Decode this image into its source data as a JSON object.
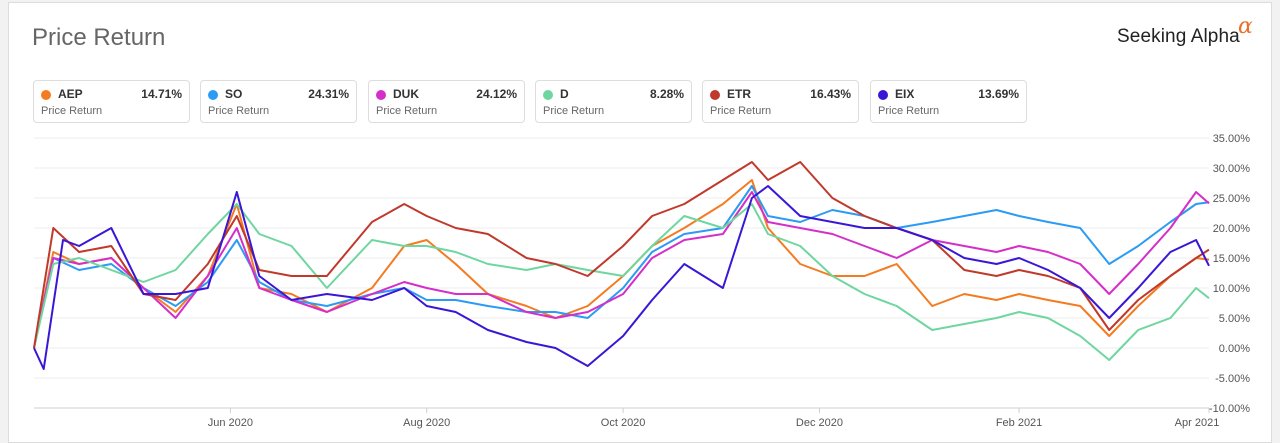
{
  "header": {
    "title": "Price Return",
    "brand": "Seeking Alpha",
    "brand_alpha": "α"
  },
  "legend": [
    {
      "ticker": "AEP",
      "value": "14.71%",
      "sub": "Price Return",
      "color": "#f47b20"
    },
    {
      "ticker": "SO",
      "value": "24.31%",
      "sub": "Price Return",
      "color": "#2b9bf4"
    },
    {
      "ticker": "DUK",
      "value": "24.12%",
      "sub": "Price Return",
      "color": "#d42fc9"
    },
    {
      "ticker": "D",
      "value": "8.28%",
      "sub": "Price Return",
      "color": "#6fd6a0"
    },
    {
      "ticker": "ETR",
      "value": "16.43%",
      "sub": "Price Return",
      "color": "#c0392b"
    },
    {
      "ticker": "EIX",
      "value": "13.69%",
      "sub": "Price Return",
      "color": "#3a16d6"
    }
  ],
  "chart_data": {
    "type": "line",
    "x_type": "date",
    "x_range": [
      "2020-04-01",
      "2021-04-01"
    ],
    "ylim": [
      -10,
      35
    ],
    "y_ticks": [
      "35.00%",
      "30.00%",
      "25.00%",
      "20.00%",
      "15.00%",
      "10.00%",
      "5.00%",
      "0.00%",
      "-5.00%",
      "-10.00%"
    ],
    "y_tick_values": [
      35,
      30,
      25,
      20,
      15,
      10,
      5,
      0,
      -5,
      -10
    ],
    "x_ticks": [
      {
        "label": "Jun 2020",
        "date": "2020-06-01"
      },
      {
        "label": "Aug 2020",
        "date": "2020-08-01"
      },
      {
        "label": "Oct 2020",
        "date": "2020-10-01"
      },
      {
        "label": "Dec 2020",
        "date": "2020-12-01"
      },
      {
        "label": "Feb 2021",
        "date": "2021-02-01"
      },
      {
        "label": "Apr 2021",
        "date": "2021-04-01"
      }
    ],
    "grid": "horizontal",
    "series": [
      {
        "name": "AEP",
        "color": "#f47b20",
        "points": [
          [
            "2020-04-01",
            0
          ],
          [
            "2020-04-07",
            16
          ],
          [
            "2020-04-15",
            14
          ],
          [
            "2020-04-25",
            15
          ],
          [
            "2020-05-05",
            10
          ],
          [
            "2020-05-15",
            6
          ],
          [
            "2020-05-25",
            12
          ],
          [
            "2020-06-03",
            24
          ],
          [
            "2020-06-10",
            10
          ],
          [
            "2020-06-20",
            9
          ],
          [
            "2020-07-01",
            6
          ],
          [
            "2020-07-15",
            10
          ],
          [
            "2020-07-25",
            17
          ],
          [
            "2020-08-01",
            18
          ],
          [
            "2020-08-10",
            14
          ],
          [
            "2020-08-20",
            9
          ],
          [
            "2020-09-01",
            7
          ],
          [
            "2020-09-10",
            5
          ],
          [
            "2020-09-20",
            7
          ],
          [
            "2020-10-01",
            12
          ],
          [
            "2020-10-10",
            17
          ],
          [
            "2020-10-20",
            20
          ],
          [
            "2020-11-01",
            24
          ],
          [
            "2020-11-10",
            28
          ],
          [
            "2020-11-15",
            20
          ],
          [
            "2020-11-25",
            14
          ],
          [
            "2020-12-05",
            12
          ],
          [
            "2020-12-15",
            12
          ],
          [
            "2020-12-25",
            14
          ],
          [
            "2021-01-05",
            7
          ],
          [
            "2021-01-15",
            9
          ],
          [
            "2021-01-25",
            8
          ],
          [
            "2021-02-01",
            9
          ],
          [
            "2021-02-10",
            8
          ],
          [
            "2021-02-20",
            7
          ],
          [
            "2021-03-01",
            2
          ],
          [
            "2021-03-10",
            7
          ],
          [
            "2021-03-20",
            12
          ],
          [
            "2021-03-28",
            15
          ],
          [
            "2021-04-01",
            14.7
          ]
        ]
      },
      {
        "name": "SO",
        "color": "#2b9bf4",
        "points": [
          [
            "2020-04-01",
            0
          ],
          [
            "2020-04-07",
            15
          ],
          [
            "2020-04-15",
            13
          ],
          [
            "2020-04-25",
            14
          ],
          [
            "2020-05-05",
            10
          ],
          [
            "2020-05-15",
            7
          ],
          [
            "2020-05-25",
            11
          ],
          [
            "2020-06-03",
            18
          ],
          [
            "2020-06-10",
            11
          ],
          [
            "2020-06-20",
            8
          ],
          [
            "2020-07-01",
            7
          ],
          [
            "2020-07-15",
            9
          ],
          [
            "2020-07-25",
            10
          ],
          [
            "2020-08-01",
            8
          ],
          [
            "2020-08-10",
            8
          ],
          [
            "2020-08-20",
            7
          ],
          [
            "2020-09-01",
            6
          ],
          [
            "2020-09-10",
            6
          ],
          [
            "2020-09-20",
            5
          ],
          [
            "2020-10-01",
            10
          ],
          [
            "2020-10-10",
            16
          ],
          [
            "2020-10-20",
            19
          ],
          [
            "2020-11-01",
            20
          ],
          [
            "2020-11-10",
            27
          ],
          [
            "2020-11-15",
            22
          ],
          [
            "2020-11-25",
            21
          ],
          [
            "2020-12-05",
            23
          ],
          [
            "2020-12-15",
            22
          ],
          [
            "2020-12-25",
            20
          ],
          [
            "2021-01-05",
            21
          ],
          [
            "2021-01-15",
            22
          ],
          [
            "2021-01-25",
            23
          ],
          [
            "2021-02-01",
            22
          ],
          [
            "2021-02-10",
            21
          ],
          [
            "2021-02-20",
            20
          ],
          [
            "2021-03-01",
            14
          ],
          [
            "2021-03-10",
            17
          ],
          [
            "2021-03-20",
            21
          ],
          [
            "2021-03-28",
            24
          ],
          [
            "2021-04-01",
            24.3
          ]
        ]
      },
      {
        "name": "DUK",
        "color": "#d42fc9",
        "points": [
          [
            "2020-04-01",
            0
          ],
          [
            "2020-04-07",
            15
          ],
          [
            "2020-04-15",
            14
          ],
          [
            "2020-04-25",
            15
          ],
          [
            "2020-05-05",
            10
          ],
          [
            "2020-05-15",
            5
          ],
          [
            "2020-05-25",
            12
          ],
          [
            "2020-06-03",
            20
          ],
          [
            "2020-06-10",
            10
          ],
          [
            "2020-06-20",
            8
          ],
          [
            "2020-07-01",
            6
          ],
          [
            "2020-07-15",
            9
          ],
          [
            "2020-07-25",
            11
          ],
          [
            "2020-08-01",
            10
          ],
          [
            "2020-08-10",
            9
          ],
          [
            "2020-08-20",
            9
          ],
          [
            "2020-09-01",
            6
          ],
          [
            "2020-09-10",
            5
          ],
          [
            "2020-09-20",
            6
          ],
          [
            "2020-10-01",
            9
          ],
          [
            "2020-10-10",
            15
          ],
          [
            "2020-10-20",
            18
          ],
          [
            "2020-11-01",
            19
          ],
          [
            "2020-11-10",
            26
          ],
          [
            "2020-11-15",
            21
          ],
          [
            "2020-11-25",
            20
          ],
          [
            "2020-12-05",
            19
          ],
          [
            "2020-12-15",
            17
          ],
          [
            "2020-12-25",
            15
          ],
          [
            "2021-01-05",
            18
          ],
          [
            "2021-01-15",
            17
          ],
          [
            "2021-01-25",
            16
          ],
          [
            "2021-02-01",
            17
          ],
          [
            "2021-02-10",
            16
          ],
          [
            "2021-02-20",
            14
          ],
          [
            "2021-03-01",
            9
          ],
          [
            "2021-03-10",
            14
          ],
          [
            "2021-03-20",
            20
          ],
          [
            "2021-03-28",
            26
          ],
          [
            "2021-04-01",
            24.1
          ]
        ]
      },
      {
        "name": "D",
        "color": "#6fd6a0",
        "points": [
          [
            "2020-04-01",
            0
          ],
          [
            "2020-04-07",
            14
          ],
          [
            "2020-04-15",
            15
          ],
          [
            "2020-04-25",
            13
          ],
          [
            "2020-05-05",
            11
          ],
          [
            "2020-05-15",
            13
          ],
          [
            "2020-05-25",
            19
          ],
          [
            "2020-06-03",
            24
          ],
          [
            "2020-06-10",
            19
          ],
          [
            "2020-06-20",
            17
          ],
          [
            "2020-07-01",
            10
          ],
          [
            "2020-07-15",
            18
          ],
          [
            "2020-07-25",
            17
          ],
          [
            "2020-08-01",
            17
          ],
          [
            "2020-08-10",
            16
          ],
          [
            "2020-08-20",
            14
          ],
          [
            "2020-09-01",
            13
          ],
          [
            "2020-09-10",
            14
          ],
          [
            "2020-09-20",
            13
          ],
          [
            "2020-10-01",
            12
          ],
          [
            "2020-10-10",
            17
          ],
          [
            "2020-10-20",
            22
          ],
          [
            "2020-11-01",
            20
          ],
          [
            "2020-11-10",
            24
          ],
          [
            "2020-11-15",
            19
          ],
          [
            "2020-11-25",
            17
          ],
          [
            "2020-12-05",
            12
          ],
          [
            "2020-12-15",
            9
          ],
          [
            "2020-12-25",
            7
          ],
          [
            "2021-01-05",
            3
          ],
          [
            "2021-01-15",
            4
          ],
          [
            "2021-01-25",
            5
          ],
          [
            "2021-02-01",
            6
          ],
          [
            "2021-02-10",
            5
          ],
          [
            "2021-02-20",
            2
          ],
          [
            "2021-03-01",
            -2
          ],
          [
            "2021-03-10",
            3
          ],
          [
            "2021-03-20",
            5
          ],
          [
            "2021-03-28",
            10
          ],
          [
            "2021-04-01",
            8.3
          ]
        ]
      },
      {
        "name": "ETR",
        "color": "#c0392b",
        "points": [
          [
            "2020-04-01",
            0
          ],
          [
            "2020-04-07",
            20
          ],
          [
            "2020-04-15",
            16
          ],
          [
            "2020-04-25",
            17
          ],
          [
            "2020-05-05",
            9
          ],
          [
            "2020-05-15",
            8
          ],
          [
            "2020-05-25",
            14
          ],
          [
            "2020-06-03",
            22
          ],
          [
            "2020-06-10",
            13
          ],
          [
            "2020-06-20",
            12
          ],
          [
            "2020-07-01",
            12
          ],
          [
            "2020-07-15",
            21
          ],
          [
            "2020-07-25",
            24
          ],
          [
            "2020-08-01",
            22
          ],
          [
            "2020-08-10",
            20
          ],
          [
            "2020-08-20",
            19
          ],
          [
            "2020-09-01",
            15
          ],
          [
            "2020-09-10",
            14
          ],
          [
            "2020-09-20",
            12
          ],
          [
            "2020-10-01",
            17
          ],
          [
            "2020-10-10",
            22
          ],
          [
            "2020-10-20",
            24
          ],
          [
            "2020-11-01",
            28
          ],
          [
            "2020-11-10",
            31
          ],
          [
            "2020-11-15",
            28
          ],
          [
            "2020-11-25",
            31
          ],
          [
            "2020-12-05",
            25
          ],
          [
            "2020-12-15",
            22
          ],
          [
            "2020-12-25",
            20
          ],
          [
            "2021-01-05",
            18
          ],
          [
            "2021-01-15",
            13
          ],
          [
            "2021-01-25",
            12
          ],
          [
            "2021-02-01",
            13
          ],
          [
            "2021-02-10",
            12
          ],
          [
            "2021-02-20",
            10
          ],
          [
            "2021-03-01",
            3
          ],
          [
            "2021-03-10",
            8
          ],
          [
            "2021-03-20",
            12
          ],
          [
            "2021-03-28",
            15
          ],
          [
            "2021-04-01",
            16.4
          ]
        ]
      },
      {
        "name": "EIX",
        "color": "#3a16d6",
        "points": [
          [
            "2020-04-01",
            0
          ],
          [
            "2020-04-04",
            -3.5
          ],
          [
            "2020-04-10",
            18
          ],
          [
            "2020-04-15",
            17
          ],
          [
            "2020-04-25",
            20
          ],
          [
            "2020-05-05",
            9
          ],
          [
            "2020-05-15",
            9
          ],
          [
            "2020-05-25",
            10
          ],
          [
            "2020-06-03",
            26
          ],
          [
            "2020-06-10",
            12
          ],
          [
            "2020-06-20",
            8
          ],
          [
            "2020-07-01",
            9
          ],
          [
            "2020-07-15",
            8
          ],
          [
            "2020-07-25",
            10
          ],
          [
            "2020-08-01",
            7
          ],
          [
            "2020-08-10",
            6
          ],
          [
            "2020-08-20",
            3
          ],
          [
            "2020-09-01",
            1
          ],
          [
            "2020-09-10",
            0
          ],
          [
            "2020-09-20",
            -3
          ],
          [
            "2020-10-01",
            2
          ],
          [
            "2020-10-10",
            8
          ],
          [
            "2020-10-20",
            14
          ],
          [
            "2020-11-01",
            10
          ],
          [
            "2020-11-10",
            25
          ],
          [
            "2020-11-15",
            27
          ],
          [
            "2020-11-25",
            22
          ],
          [
            "2020-12-05",
            21
          ],
          [
            "2020-12-15",
            20
          ],
          [
            "2020-12-25",
            20
          ],
          [
            "2021-01-05",
            18
          ],
          [
            "2021-01-15",
            15
          ],
          [
            "2021-01-25",
            14
          ],
          [
            "2021-02-01",
            15
          ],
          [
            "2021-02-10",
            13
          ],
          [
            "2021-02-20",
            10
          ],
          [
            "2021-03-01",
            5
          ],
          [
            "2021-03-10",
            10
          ],
          [
            "2021-03-20",
            16
          ],
          [
            "2021-03-28",
            18
          ],
          [
            "2021-04-01",
            13.7
          ]
        ]
      }
    ]
  }
}
